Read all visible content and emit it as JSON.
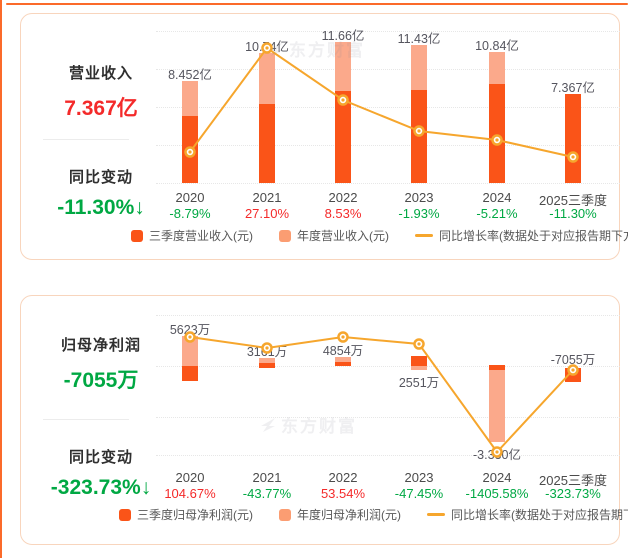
{
  "watermark": "东方财富",
  "panels": [
    {
      "title": "营业收入",
      "value": "7.367亿",
      "value_color": "red",
      "change_title": "同比变动",
      "change_value": "-11.30%↓",
      "change_color": "green"
    },
    {
      "title": "归母净利润",
      "value": "-7055万",
      "value_color": "green",
      "change_title": "同比变动",
      "change_value": "-323.73%↓",
      "change_color": "green"
    }
  ],
  "chart_data": [
    {
      "type": "bar+line",
      "title": "营业收入(元)",
      "categories": [
        "2020",
        "2021",
        "2022",
        "2023",
        "2024",
        "2025三季度"
      ],
      "series": [
        {
          "name": "三季度营业收入(元)",
          "unit": "亿",
          "estimated": true,
          "values": [
            5.55,
            6.55,
            7.62,
            7.7,
            8.3,
            7.367
          ]
        },
        {
          "name": "年度营业收入(元)",
          "unit": "亿",
          "values": [
            8.452,
            10.74,
            11.66,
            11.43,
            10.84,
            null
          ]
        },
        {
          "name": "同比增长率(数据处于对应报告期下方)",
          "unit": "%",
          "values": [
            -8.79,
            27.1,
            8.53,
            -1.93,
            -5.21,
            -11.3
          ]
        }
      ],
      "bar_value_labels": [
        "8.452亿",
        "10.74亿",
        "11.66亿",
        "11.43亿",
        "10.84亿",
        "7.367亿"
      ],
      "pct_labels": [
        "-8.79%",
        "27.10%",
        "8.53%",
        "-1.93%",
        "-5.21%",
        "-11.30%"
      ],
      "legend": [
        {
          "label": "三季度营业收入(元)",
          "swatch": "bar-dark"
        },
        {
          "label": "年度营业收入(元)",
          "swatch": "bar-light"
        },
        {
          "label": "同比增长率(数据处于对应报告期下方)",
          "swatch": "line"
        }
      ],
      "grid": true,
      "legend_position": "bottom"
    },
    {
      "type": "bar+line",
      "title": "归母净利润(元)",
      "categories": [
        "2020",
        "2021",
        "2022",
        "2023",
        "2024",
        "2025三季度"
      ],
      "series": [
        {
          "name": "三季度归母净利润(元)",
          "unit": "万",
          "estimated": true,
          "values": [
            -1900,
            500,
            500,
            1300,
            3150,
            -7055
          ]
        },
        {
          "name": "年度归母净利润(元)",
          "unit": "万",
          "values": [
            5623,
            3161,
            4854,
            2551,
            -33300,
            null
          ]
        },
        {
          "name": "同比增长率(数据处于对应报告期下方)",
          "unit": "%",
          "values": [
            104.67,
            -43.77,
            53.54,
            -47.45,
            -1405.58,
            -323.73
          ]
        }
      ],
      "bar_value_labels": [
        "5623万",
        "3161万",
        "4854万",
        "2551万",
        "-3.330亿",
        "-7055万"
      ],
      "pct_labels": [
        "104.67%",
        "-43.77%",
        "53.54%",
        "-47.45%",
        "-1405.58%",
        "-323.73%"
      ],
      "legend": [
        {
          "label": "三季度归母净利润(元)",
          "swatch": "bar-dark"
        },
        {
          "label": "年度归母净利润(元)",
          "swatch": "bar-light"
        },
        {
          "label": "同比增长率(数据处于对应报告期下方)",
          "swatch": "line"
        }
      ],
      "grid": true,
      "legend_position": "bottom"
    }
  ],
  "colors": {
    "bar_dark": "#fa5418",
    "bar_light": "#fba98b",
    "legend_light": "#fb9d72",
    "line": "#f6a62d",
    "up_red": "#f42a2a",
    "down_green": "#00a843",
    "accent": "#fb6a2a"
  }
}
